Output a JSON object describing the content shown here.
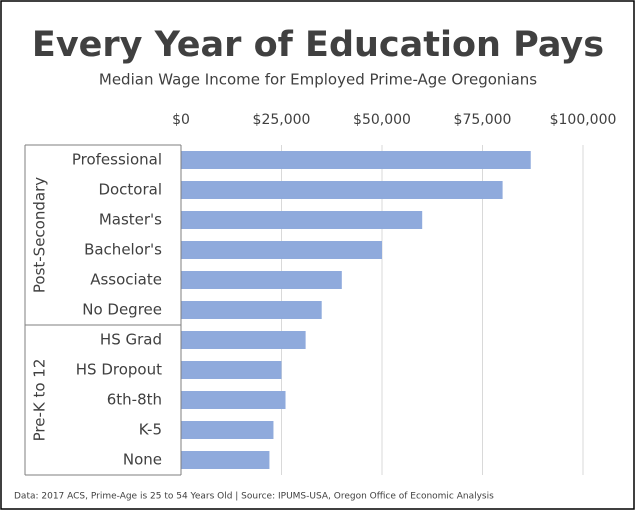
{
  "chart_data": {
    "type": "bar",
    "orientation": "horizontal",
    "title": "Every Year of Education Pays",
    "subtitle": "Median Wage Income for Employed Prime-Age Oregonians",
    "groups": [
      {
        "name": "Post-Secondary",
        "categories": [
          "Professional",
          "Doctoral",
          "Master's",
          "Bachelor's",
          "Associate",
          "No Degree"
        ],
        "values": [
          87000,
          80000,
          60000,
          50000,
          40000,
          35000
        ]
      },
      {
        "name": "Pre-K to 12",
        "categories": [
          "HS Grad",
          "HS Dropout",
          "6th-8th",
          "K-5",
          "None"
        ],
        "values": [
          31000,
          25000,
          26000,
          23000,
          22000
        ]
      }
    ],
    "color": "#8faadc",
    "xlim": [
      0,
      100000
    ],
    "xticks": [
      {
        "value": 0,
        "label": "$0"
      },
      {
        "value": 25000,
        "label": "$25,000"
      },
      {
        "value": 50000,
        "label": "$50,000"
      },
      {
        "value": 75000,
        "label": "$75,000"
      },
      {
        "value": 100000,
        "label": "$100,000"
      }
    ],
    "grid": true,
    "source": "Data: 2017 ACS, Prime-Age is 25 to 54 Years Old  |  Source: IPUMS-USA, Oregon Office of Economic Analysis"
  }
}
